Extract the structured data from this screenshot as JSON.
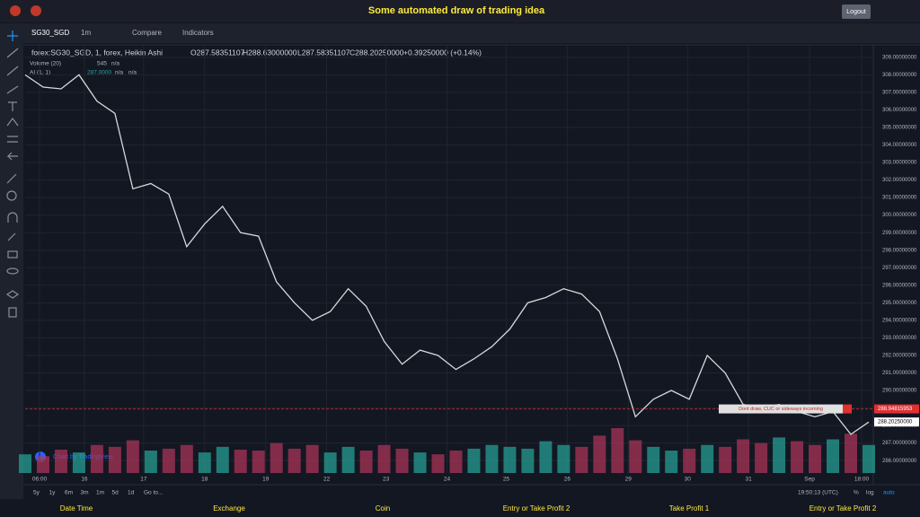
{
  "header": {
    "title": "Some automated draw of trading idea",
    "logout": "Logout"
  },
  "toolbar": {
    "symbol": "SG30_SGD",
    "interval": "1m",
    "compare": "Compare",
    "indicators": "Indicators"
  },
  "legend": {
    "series": "forex:SG30_SGD, 1, forex, Heikin Ashi",
    "open": "O287.58351107",
    "high": "H288.63000000",
    "low": "L287.58351107",
    "close": "C288.20250000",
    "change": "+0.39250000 (+0.14%)",
    "volume": "Volume (20)",
    "volume_value": "545",
    "volume_na": "n/a",
    "ma": "AI (1, 1)",
    "ma_value": "287.0000",
    "ma_na1": "n/a",
    "ma_na2": "n/a"
  },
  "chart_data": {
    "type": "line",
    "x": [
      0,
      1,
      2,
      3,
      4,
      5,
      6,
      7,
      8,
      9,
      10,
      11,
      12,
      13,
      14,
      15,
      16,
      17,
      18,
      19,
      20,
      21,
      22,
      23,
      24,
      25,
      26,
      27,
      28,
      29,
      30,
      31,
      32,
      33,
      34,
      35,
      36,
      37,
      38,
      39,
      40,
      41,
      42,
      43,
      44,
      45,
      46,
      47
    ],
    "series": [
      {
        "name": "SG30_SGD",
        "color": "#d8d8d8",
        "values": [
          308.0,
          307.3,
          307.2,
          308.0,
          306.5,
          305.8,
          301.5,
          301.8,
          301.2,
          298.2,
          299.5,
          300.5,
          299.0,
          298.8,
          296.2,
          295.0,
          294.0,
          294.5,
          295.8,
          294.8,
          292.8,
          291.5,
          292.3,
          292.0,
          291.2,
          291.8,
          292.5,
          293.5,
          295.0,
          295.3,
          295.8,
          295.5,
          294.5,
          291.8,
          288.5,
          289.5,
          290.0,
          289.5,
          292.0,
          291.0,
          289.2,
          289.0,
          289.2,
          288.8,
          288.5,
          288.8,
          287.5,
          288.2
        ]
      }
    ],
    "volume": {
      "name": "Volume",
      "up_color": "#26a69a",
      "down_color": "#b2365b",
      "values": [
        20,
        18,
        25,
        22,
        30,
        28,
        35,
        24,
        26,
        30,
        22,
        28,
        25,
        24,
        32,
        26,
        30,
        22,
        28,
        24,
        30,
        26,
        22,
        20,
        24,
        26,
        30,
        28,
        26,
        34,
        30,
        28,
        40,
        48,
        35,
        28,
        24,
        26,
        30,
        28,
        36,
        32,
        38,
        34,
        30,
        36,
        42,
        30
      ]
    },
    "xlim": [
      0,
      47
    ],
    "xticks": [
      {
        "value": 0.8,
        "label": "06:00"
      },
      {
        "value": 3.3,
        "label": "16"
      },
      {
        "value": 6.6,
        "label": "17"
      },
      {
        "value": 10,
        "label": "18"
      },
      {
        "value": 13.4,
        "label": "19"
      },
      {
        "value": 16.8,
        "label": "22"
      },
      {
        "value": 20.1,
        "label": "23"
      },
      {
        "value": 23.5,
        "label": "24"
      },
      {
        "value": 26.8,
        "label": "25"
      },
      {
        "value": 30.2,
        "label": "26"
      },
      {
        "value": 33.6,
        "label": "29"
      },
      {
        "value": 36.9,
        "label": "30"
      },
      {
        "value": 40.3,
        "label": "31"
      },
      {
        "value": 43.7,
        "label": "Sep"
      },
      {
        "value": 46.6,
        "label": "18:00"
      }
    ],
    "ylim": [
      285.6,
      309.4
    ],
    "yticks": [
      {
        "value": 286,
        "label": "286.00000000"
      },
      {
        "value": 287,
        "label": "287.00000000"
      },
      {
        "value": 288,
        "label": "288.00000000"
      },
      {
        "value": 289,
        "label": "289.00000000"
      },
      {
        "value": 290,
        "label": "290.00000000"
      },
      {
        "value": 291,
        "label": "291.00000000"
      },
      {
        "value": 292,
        "label": "292.00000000"
      },
      {
        "value": 293,
        "label": "293.00000000"
      },
      {
        "value": 294,
        "label": "294.00000000"
      },
      {
        "value": 295,
        "label": "295.00000000"
      },
      {
        "value": 296,
        "label": "296.00000000"
      },
      {
        "value": 297,
        "label": "297.00000000"
      },
      {
        "value": 298,
        "label": "298.00000000"
      },
      {
        "value": 299,
        "label": "299.00000000"
      },
      {
        "value": 300,
        "label": "300.00000000"
      },
      {
        "value": 301,
        "label": "301.00000000"
      },
      {
        "value": 302,
        "label": "302.00000000"
      },
      {
        "value": 303,
        "label": "303.00000000"
      },
      {
        "value": 304,
        "label": "304.00000000"
      },
      {
        "value": 305,
        "label": "305.00000000"
      },
      {
        "value": 306,
        "label": "306.00000000"
      },
      {
        "value": 307,
        "label": "307.00000000"
      },
      {
        "value": 308,
        "label": "308.00000000"
      },
      {
        "value": 309,
        "label": "309.00000000"
      }
    ],
    "grid": true,
    "price_lines": [
      {
        "value": 288.94815953,
        "label": "288.94815953",
        "color": "#e03030"
      },
      {
        "value": 288.2025,
        "label": "288.20250000",
        "color": "#ffffff"
      }
    ],
    "annotation": "Dont draw, CUC or sideways incoming"
  },
  "watermark": "Chart by TradingView",
  "bottom_bar": {
    "ranges": [
      "5y",
      "1y",
      "6m",
      "3m",
      "1m",
      "5d",
      "1d"
    ],
    "goto": "Go to...",
    "time": "19:50:13 (UTC)",
    "percent": "%",
    "log": "log",
    "auto": "auto"
  },
  "footer": [
    "Date Time",
    "Exchange",
    "Coin",
    "Entry or Take Profit 2",
    "Take Profit 1",
    "Entry or Take Profit 2"
  ]
}
